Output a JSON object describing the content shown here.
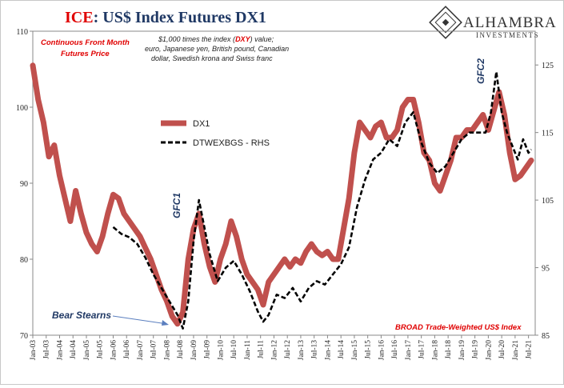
{
  "title": {
    "prefix": "ICE",
    "sep": ":",
    "rest": " US$ Index Futures DX1"
  },
  "logo": {
    "name": "ALHAMBRA",
    "sub": "INVESTMENTS"
  },
  "annotations": {
    "left_note_1": "Continuous  Front Month",
    "left_note_2": "Futures Price",
    "desc_1a": "$1,000 times the index (",
    "desc_1b": "DXY",
    "desc_1c": ") value;",
    "desc_2": "euro, Japanese yen, British pound, Canadian",
    "desc_3": "dollar, Swedish krona and Swiss franc",
    "gfc1": "GFC1",
    "gfc2": "GFC2",
    "bear_stearns": "Bear Stearns",
    "broad": "BROAD Trade-Weighted US$ Index"
  },
  "colors": {
    "dx1": "#c0504d",
    "dtwex": "#000000",
    "title_red": "#e00000",
    "note_red": "#e00000",
    "dark_blue": "#1f3864"
  },
  "chart_data": {
    "type": "line",
    "x_tick_labels": [
      "Jan-03",
      "Jul-03",
      "Jan-04",
      "Jul-04",
      "Jan-05",
      "Jul-05",
      "Jan-06",
      "Jul-06",
      "Jan-07",
      "Jul-07",
      "Jan-08",
      "Jul-08",
      "Jan-09",
      "Jul-09",
      "Jan-10",
      "Jul-10",
      "Jan-11",
      "Jul-11",
      "Jan-12",
      "Jul-12",
      "Jan-13",
      "Jul-13",
      "Jan-14",
      "Jul-14",
      "Jan-15",
      "Jul-15",
      "Jan-16",
      "Jul-16",
      "Jan-17",
      "Jul-17",
      "Jan-18",
      "Jul-18",
      "Jan-19",
      "Jul-19",
      "Jan-20",
      "Jul-20",
      "Jan-21",
      "Jul-21"
    ],
    "y_left": {
      "ticks": [
        70,
        80,
        90,
        100,
        110
      ],
      "range": [
        70,
        110
      ]
    },
    "y_right": {
      "ticks": [
        85,
        95,
        105,
        115,
        125
      ],
      "range": [
        85,
        130
      ]
    },
    "series": [
      {
        "name": "DX1",
        "axis": "left",
        "x": [
          2003.0,
          2003.2,
          2003.4,
          2003.6,
          2003.8,
          2004.0,
          2004.2,
          2004.4,
          2004.6,
          2004.8,
          2005.0,
          2005.2,
          2005.4,
          2005.6,
          2005.8,
          2006.0,
          2006.2,
          2006.4,
          2006.6,
          2006.8,
          2007.0,
          2007.2,
          2007.4,
          2007.6,
          2007.8,
          2008.0,
          2008.2,
          2008.4,
          2008.6,
          2008.8,
          2009.0,
          2009.2,
          2009.4,
          2009.6,
          2009.8,
          2010.0,
          2010.2,
          2010.4,
          2010.6,
          2010.8,
          2011.0,
          2011.2,
          2011.4,
          2011.6,
          2011.8,
          2012.0,
          2012.2,
          2012.4,
          2012.6,
          2012.8,
          2013.0,
          2013.2,
          2013.4,
          2013.6,
          2013.8,
          2014.0,
          2014.2,
          2014.4,
          2014.6,
          2014.8,
          2015.0,
          2015.2,
          2015.4,
          2015.6,
          2015.8,
          2016.0,
          2016.2,
          2016.4,
          2016.6,
          2016.8,
          2017.0,
          2017.2,
          2017.4,
          2017.6,
          2017.8,
          2018.0,
          2018.2,
          2018.4,
          2018.6,
          2018.8,
          2019.0,
          2019.2,
          2019.4,
          2019.6,
          2019.8,
          2020.0,
          2020.2,
          2020.4,
          2020.6,
          2020.8,
          2021.0,
          2021.2,
          2021.4,
          2021.6
        ],
        "values": [
          105.5,
          101,
          98,
          93.5,
          95,
          91,
          88,
          85,
          89,
          86,
          83.5,
          82,
          81,
          83,
          86,
          88.5,
          88,
          86,
          85,
          84,
          83,
          81.5,
          80,
          78,
          76,
          74.5,
          72.5,
          71.5,
          73,
          80,
          84,
          86,
          82,
          79,
          77,
          80,
          82,
          85,
          83,
          80,
          78,
          77,
          76,
          74,
          77,
          78,
          79,
          80,
          79,
          80,
          79.5,
          81,
          82,
          81,
          80.5,
          81,
          80,
          80,
          84,
          88,
          94,
          98,
          97,
          96,
          97.5,
          98,
          96,
          96,
          97,
          100,
          101,
          101,
          98,
          94,
          93,
          90,
          89,
          91,
          93,
          96,
          96,
          97,
          97,
          98,
          99,
          97,
          99.5,
          102,
          99,
          94,
          90.5,
          91,
          92,
          93
        ]
      },
      {
        "name": "DTWEXBGS - RHS",
        "axis": "right",
        "x": [
          2006.0,
          2006.3,
          2006.6,
          2006.9,
          2007.2,
          2007.5,
          2007.8,
          2008.1,
          2008.4,
          2008.6,
          2008.8,
          2009.0,
          2009.2,
          2009.4,
          2009.6,
          2009.9,
          2010.2,
          2010.5,
          2010.8,
          2011.1,
          2011.4,
          2011.6,
          2011.8,
          2012.1,
          2012.4,
          2012.7,
          2013.0,
          2013.3,
          2013.6,
          2013.9,
          2014.2,
          2014.5,
          2014.8,
          2015.1,
          2015.4,
          2015.7,
          2016.0,
          2016.3,
          2016.6,
          2016.9,
          2017.2,
          2017.5,
          2017.8,
          2018.1,
          2018.4,
          2018.7,
          2019.0,
          2019.3,
          2019.6,
          2019.9,
          2020.1,
          2020.3,
          2020.5,
          2020.7,
          2020.9,
          2021.1,
          2021.3,
          2021.5,
          2021.6
        ],
        "values": [
          101,
          100,
          99.5,
          98.5,
          96.5,
          94,
          92,
          90,
          88,
          86,
          90,
          99,
          105,
          101,
          97,
          93,
          95,
          96,
          94,
          91.5,
          88.5,
          87,
          88,
          91,
          90.5,
          92,
          90,
          92,
          93,
          92.5,
          94,
          95.5,
          98,
          104,
          108,
          111,
          112,
          114,
          113,
          116.5,
          118,
          113.5,
          110.5,
          109,
          110,
          112,
          114,
          115,
          115,
          115,
          118,
          124,
          118,
          115,
          113,
          111,
          114,
          112,
          112.5
        ]
      }
    ],
    "legend": "upper-left inside plot",
    "grid": false
  }
}
